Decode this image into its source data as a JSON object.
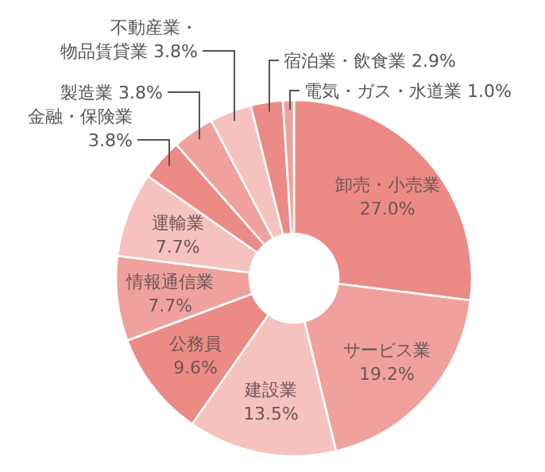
{
  "chart_data": {
    "type": "donut",
    "categories": [
      "卸売・小売業",
      "サービス業",
      "建設業",
      "公務員",
      "情報通信業",
      "運輸業",
      "金融・保険業",
      "製造業",
      "不動産業・物品賃貸業",
      "宿泊業・飲食業",
      "電気・ガス・水道業"
    ],
    "values": [
      27.0,
      19.2,
      13.5,
      9.6,
      7.7,
      7.7,
      3.8,
      3.8,
      3.8,
      2.9,
      1.0
    ],
    "value_labels": [
      "27.0%",
      "19.2%",
      "13.5%",
      "9.6%",
      "7.7%",
      "7.7%",
      "3.8%",
      "3.8%",
      "3.8%",
      "2.9%",
      "1.0%"
    ],
    "colors": [
      "#ec8a85",
      "#f0a19d",
      "#f6c2be",
      "#ec8a85",
      "#f0a19d",
      "#f6c2be",
      "#ec8a85",
      "#f0a19d",
      "#f6c2be",
      "#ec8a85",
      "#f0a19d"
    ]
  }
}
